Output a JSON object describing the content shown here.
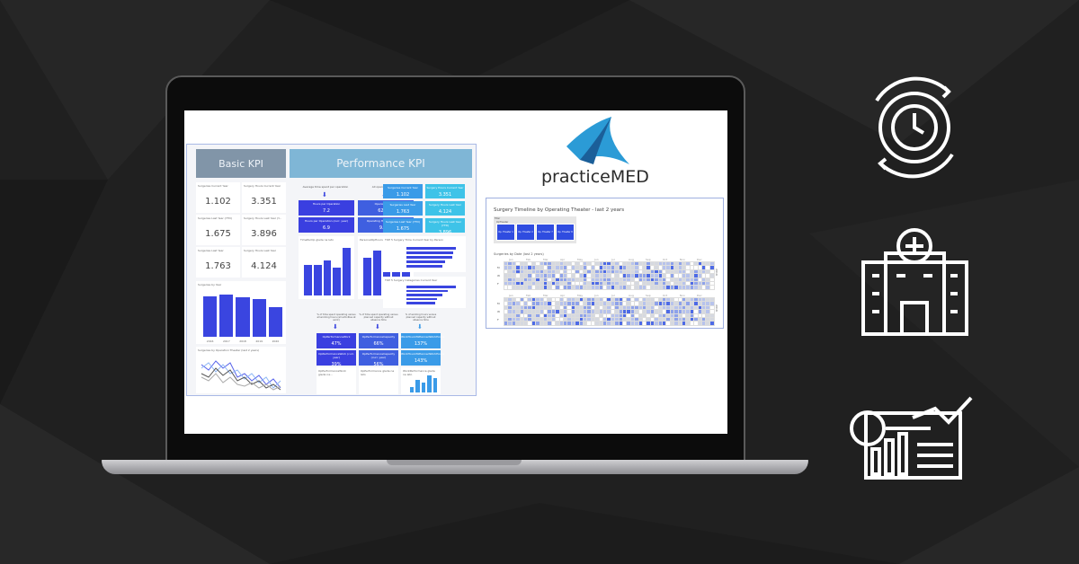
{
  "colors": {
    "background": "#202020",
    "accent": "#3a45e0",
    "header_basic": "#8195a8",
    "header_perf": "#7fb6d6",
    "cyan": "#3ec3e8"
  },
  "dashboard": {
    "basic_kpi": {
      "title": "Basic KPI",
      "cards": [
        {
          "label": "Surgeries Current Year",
          "value": "1.102"
        },
        {
          "label": "Surgery Hours Current Year",
          "value": "3.351"
        },
        {
          "label": "Surgeries Last Year (YTD)",
          "value": "1.675"
        },
        {
          "label": "Surgery Hours Last Year (Y...",
          "value": "3.896"
        },
        {
          "label": "Surgeries Last Year",
          "value": "1.763"
        },
        {
          "label": "Surgery Hours Last Year",
          "value": "4.124"
        }
      ],
      "year_chart": {
        "title": "Surgeries by Year",
        "categories": [
          "2016",
          "2017",
          "2018",
          "2019",
          "2020"
        ]
      },
      "line_chart": {
        "title": "Surgeries by Operation Theater (last 2 years)",
        "legend": [
          "Op. Theater 1",
          "Op. Theater 2",
          "Op. Theater 7",
          "Op. Theater 8"
        ]
      }
    },
    "performance_kpi": {
      "title": "Performance KPI",
      "captions": [
        "Average time spent per operation",
        "All operating hours"
      ],
      "boxes": [
        {
          "label": "Hours per Operation",
          "value": "7.2"
        },
        {
          "label": "Operating Hours",
          "value": "62.870"
        },
        {
          "label": "Hours per Operation (curr. year)",
          "value": "6.9"
        },
        {
          "label": "Operating Hours (curr. year)",
          "value": "9.753"
        }
      ],
      "right_boxes": [
        {
          "label": "Surgeries Current Year",
          "value": "1.102"
        },
        {
          "label": "Surgery Hours Current Year",
          "value": "3.351"
        },
        {
          "label": "Surgeries Last Year",
          "value": "1.763"
        },
        {
          "label": "Surgery Hours Last Year",
          "value": "4.124"
        },
        {
          "label": "Surgeries Last Year (YTD)",
          "value": "1.675"
        },
        {
          "label": "Surgery Hours Last Year (YTD)",
          "value": "3.896"
        }
      ],
      "chart_titles": [
        "TimePerOp glede na leto",
        "PersonalOpHours glede na leto",
        "TOP 5 Surgery Time Current Year by Person",
        "TOP 5 Surgery Categories Current Year"
      ],
      "pct_captions": [
        "% of time spent operating versus all working hours (all activities at work)",
        "% of time spent operating versus planned capacity without absence time",
        "% of working hours versus planned capacity without absence time"
      ],
      "pct_boxes": [
        {
          "label": "OpPerformanceWork",
          "value": "47%"
        },
        {
          "label": "OpPerformanceCapacity",
          "value": "66%"
        },
        {
          "label": "WorkHoursToPlannedWorkHours",
          "value": "137%"
        },
        {
          "label": "OpPerformanceWork (curr. year)",
          "value": "39%"
        },
        {
          "label": "OpPerformanceCapacity (curr. year)",
          "value": "56%"
        },
        {
          "label": "WorkHoursToPlannedWorkHours",
          "value": "143%"
        }
      ],
      "bottom_titles": [
        "OpPerformanceWork glede na...",
        "OpPerformance glede na leto",
        "WorkPerformance glede na leto"
      ]
    }
  },
  "brand": {
    "name": "practiceMED"
  },
  "timeline": {
    "title": "Surgery Timeline by Operating Theater - last 2 years",
    "filter_label": "Filter",
    "filter_sub": "OpTheater",
    "filters": [
      "Op. Theater 1",
      "Op. Theater 2",
      "Op. Theater 7",
      "Op. Theater 8"
    ],
    "heatmap_title": "Surgeries by Date (last 2 years)",
    "months": [
      "Jan",
      "Feb",
      "Mar",
      "Apr",
      "May",
      "Jun",
      "Jul",
      "Aug",
      "Sep",
      "Oct",
      "Nov",
      "Dec"
    ],
    "days": [
      "M",
      "W",
      "F"
    ],
    "years": [
      "2019",
      "2018"
    ]
  },
  "side_icons": [
    "gear-clock-icon",
    "hospital-icon",
    "analytics-chart-icon"
  ]
}
